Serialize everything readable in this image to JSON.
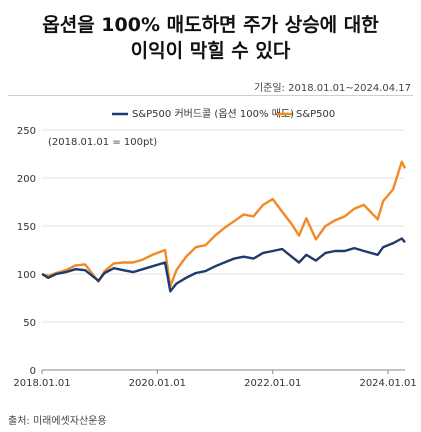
{
  "header": {
    "title_line1": "옵션을 100% 매도하면 주가 상승에 대한",
    "title_line2": "이익이 막힐 수 있다",
    "period": "기준일: 2018.01.01~2024.04.17"
  },
  "footer": {
    "source": "출처: 미래에셋자산운용"
  },
  "colors": {
    "series1": "#1f3a6e",
    "series2": "#f08a24",
    "grid": "#e3e3e3"
  },
  "chart_data": {
    "type": "line",
    "title": "옵션을 100% 매도하면 주가 상승에 대한 이익이 막힐 수 있다",
    "note": "(2018.01.01 = 100pt)",
    "xlabel": "",
    "ylabel": "",
    "xlim": [
      "2018-01-01",
      "2024-04-17"
    ],
    "ylim": [
      0,
      250
    ],
    "yticks": [
      0,
      50,
      100,
      150,
      200,
      250
    ],
    "xticks": [
      "2018.01.01",
      "2020.01.01",
      "2022.01.01",
      "2024.01.01"
    ],
    "grid": true,
    "legend_position": "top",
    "series": [
      {
        "name": "S&P500 커버드콜 (옵션 100% 매도)",
        "color": "#1f3a6e",
        "x": [
          "2018-01-01",
          "2018-02-09",
          "2018-04-01",
          "2018-06-01",
          "2018-08-01",
          "2018-10-01",
          "2018-12-24",
          "2019-02-01",
          "2019-04-01",
          "2019-06-01",
          "2019-08-01",
          "2019-10-01",
          "2019-12-01",
          "2020-02-19",
          "2020-03-23",
          "2020-05-01",
          "2020-07-01",
          "2020-09-01",
          "2020-11-01",
          "2021-01-01",
          "2021-03-01",
          "2021-05-01",
          "2021-07-01",
          "2021-09-01",
          "2021-11-01",
          "2022-01-01",
          "2022-03-01",
          "2022-05-01",
          "2022-06-16",
          "2022-08-01",
          "2022-10-01",
          "2022-12-01",
          "2023-02-01",
          "2023-04-01",
          "2023-06-01",
          "2023-08-01",
          "2023-10-27",
          "2023-12-01",
          "2024-02-01",
          "2024-03-28",
          "2024-04-17"
        ],
        "values": [
          100,
          96,
          100,
          102,
          105,
          104,
          93,
          101,
          106,
          104,
          102,
          105,
          108,
          112,
          82,
          90,
          96,
          101,
          103,
          108,
          112,
          116,
          118,
          116,
          122,
          124,
          126,
          118,
          112,
          120,
          114,
          122,
          124,
          124,
          127,
          124,
          120,
          128,
          132,
          137,
          133
        ]
      },
      {
        "name": "S&P500",
        "color": "#f08a24",
        "x": [
          "2018-01-01",
          "2018-02-09",
          "2018-04-01",
          "2018-06-01",
          "2018-08-01",
          "2018-10-01",
          "2018-12-24",
          "2019-02-01",
          "2019-04-01",
          "2019-06-01",
          "2019-08-01",
          "2019-10-01",
          "2019-12-01",
          "2020-02-19",
          "2020-03-23",
          "2020-05-01",
          "2020-07-01",
          "2020-09-01",
          "2020-11-01",
          "2021-01-01",
          "2021-03-01",
          "2021-05-01",
          "2021-07-01",
          "2021-09-01",
          "2021-11-01",
          "2022-01-01",
          "2022-03-01",
          "2022-05-01",
          "2022-06-16",
          "2022-08-01",
          "2022-10-01",
          "2022-12-01",
          "2023-02-01",
          "2023-04-01",
          "2023-06-01",
          "2023-08-01",
          "2023-10-27",
          "2023-12-01",
          "2024-02-01",
          "2024-03-28",
          "2024-04-17"
        ],
        "values": [
          100,
          98,
          101,
          104,
          109,
          110,
          92,
          103,
          111,
          112,
          112,
          115,
          120,
          125,
          87,
          104,
          118,
          128,
          130,
          140,
          148,
          155,
          162,
          160,
          172,
          178,
          165,
          152,
          140,
          158,
          136,
          150,
          156,
          160,
          168,
          172,
          157,
          176,
          188,
          217,
          210
        ]
      }
    ]
  }
}
